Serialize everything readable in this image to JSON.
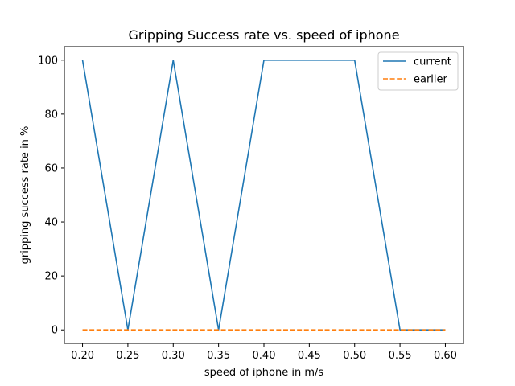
{
  "chart_data": {
    "type": "line",
    "title": "Gripping Success rate vs. speed of iphone",
    "xlabel": "speed of iphone in m/s",
    "ylabel": "gripping success rate in %",
    "x": [
      0.2,
      0.25,
      0.3,
      0.35,
      0.4,
      0.45,
      0.5,
      0.55,
      0.6
    ],
    "xticks": [
      "0.20",
      "0.25",
      "0.30",
      "0.35",
      "0.40",
      "0.45",
      "0.50",
      "0.55",
      "0.60"
    ],
    "yticks": [
      "0",
      "20",
      "40",
      "60",
      "80",
      "100"
    ],
    "xlim": [
      0.18,
      0.62
    ],
    "ylim": [
      -5,
      105
    ],
    "grid": false,
    "legend_position": "top-right",
    "series": [
      {
        "name": "current",
        "values": [
          100,
          0,
          100,
          0,
          100,
          100,
          100,
          0,
          0
        ],
        "color": "#1f77b4",
        "style": "solid"
      },
      {
        "name": "earlier",
        "values": [
          0,
          0,
          0,
          0,
          0,
          0,
          0,
          0,
          0
        ],
        "color": "#ff7f0e",
        "style": "dashed"
      }
    ]
  }
}
